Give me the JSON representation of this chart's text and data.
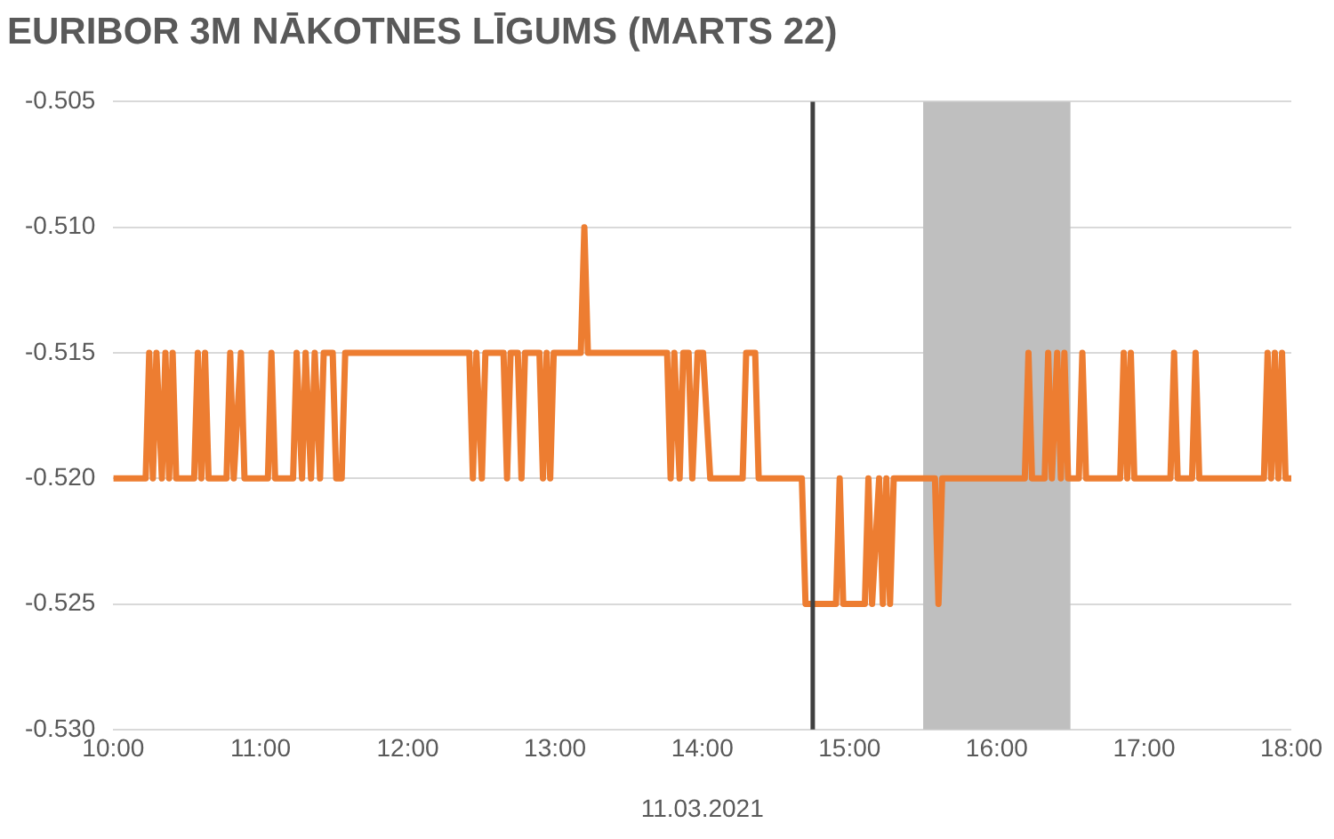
{
  "chart_data": {
    "type": "line",
    "title": "EURIBOR 3M NĀKOTNES LĪGUMS (MARTS 22)",
    "xlabel": "11.03.2021",
    "x": [
      10.0,
      10.22,
      10.244,
      10.269,
      10.293,
      10.33,
      10.354,
      10.379,
      10.403,
      10.427,
      10.549,
      10.574,
      10.598,
      10.623,
      10.647,
      10.769,
      10.794,
      10.818,
      10.867,
      10.891,
      11.05,
      11.074,
      11.099,
      11.221,
      11.245,
      11.282,
      11.306,
      11.343,
      11.368,
      11.404,
      11.429,
      11.49,
      11.514,
      11.551,
      11.575,
      12.418,
      12.442,
      12.466,
      12.503,
      12.527,
      12.65,
      12.674,
      12.698,
      12.747,
      12.772,
      12.796,
      12.894,
      12.918,
      12.943,
      12.967,
      12.991,
      13.175,
      13.199,
      13.223,
      13.761,
      13.785,
      13.81,
      13.846,
      13.871,
      13.907,
      13.932,
      13.968,
      14.005,
      14.054,
      14.274,
      14.298,
      14.359,
      14.383,
      14.676,
      14.701,
      14.908,
      14.933,
      14.957,
      15.104,
      15.128,
      15.153,
      15.201,
      15.226,
      15.25,
      15.275,
      15.3,
      15.58,
      15.604,
      15.629,
      16.19,
      16.215,
      16.239,
      16.325,
      16.349,
      16.374,
      16.41,
      16.435,
      16.459,
      16.484,
      16.557,
      16.581,
      16.606,
      16.838,
      16.862,
      16.886,
      16.91,
      16.934,
      17.179,
      17.204,
      17.228,
      17.326,
      17.35,
      17.375,
      17.814,
      17.839,
      17.863,
      17.888,
      17.912,
      17.937,
      17.961,
      18.0
    ],
    "series": [
      {
        "color": "#ed7d31",
        "values": [
          -0.52,
          -0.52,
          -0.515,
          -0.52,
          -0.515,
          -0.52,
          -0.515,
          -0.52,
          -0.515,
          -0.52,
          -0.52,
          -0.515,
          -0.52,
          -0.515,
          -0.52,
          -0.52,
          -0.515,
          -0.52,
          -0.515,
          -0.52,
          -0.52,
          -0.515,
          -0.52,
          -0.52,
          -0.515,
          -0.52,
          -0.515,
          -0.52,
          -0.515,
          -0.52,
          -0.515,
          -0.515,
          -0.52,
          -0.52,
          -0.515,
          -0.515,
          -0.52,
          -0.515,
          -0.52,
          -0.515,
          -0.515,
          -0.52,
          -0.515,
          -0.515,
          -0.52,
          -0.515,
          -0.515,
          -0.52,
          -0.515,
          -0.52,
          -0.515,
          -0.515,
          -0.51,
          -0.515,
          -0.515,
          -0.52,
          -0.515,
          -0.52,
          -0.515,
          -0.515,
          -0.52,
          -0.515,
          -0.515,
          -0.52,
          -0.52,
          -0.515,
          -0.515,
          -0.52,
          -0.52,
          -0.525,
          -0.525,
          -0.52,
          -0.525,
          -0.525,
          -0.52,
          -0.525,
          -0.52,
          -0.525,
          -0.52,
          -0.525,
          -0.52,
          -0.52,
          -0.525,
          -0.52,
          -0.52,
          -0.515,
          -0.52,
          -0.52,
          -0.515,
          -0.52,
          -0.515,
          -0.52,
          -0.515,
          -0.52,
          -0.52,
          -0.515,
          -0.52,
          -0.52,
          -0.515,
          -0.52,
          -0.515,
          -0.52,
          -0.52,
          -0.515,
          -0.52,
          -0.52,
          -0.515,
          -0.52,
          -0.52,
          -0.515,
          -0.52,
          -0.515,
          -0.52,
          -0.515,
          -0.52,
          -0.52
        ]
      }
    ],
    "xlim": [
      10,
      18
    ],
    "xticks": [
      {
        "value": 10,
        "label": "10:00"
      },
      {
        "value": 11,
        "label": "11:00"
      },
      {
        "value": 12,
        "label": "12:00"
      },
      {
        "value": 13,
        "label": "13:00"
      },
      {
        "value": 14,
        "label": "14:00"
      },
      {
        "value": 15,
        "label": "15:00"
      },
      {
        "value": 16,
        "label": "16:00"
      },
      {
        "value": 17,
        "label": "17:00"
      },
      {
        "value": 18,
        "label": "18:00"
      }
    ],
    "ylim": [
      -0.53,
      -0.505
    ],
    "yticks": [
      {
        "value": -0.53,
        "label": "-0.530"
      },
      {
        "value": -0.525,
        "label": "-0.525"
      },
      {
        "value": -0.52,
        "label": "-0.520"
      },
      {
        "value": -0.515,
        "label": "-0.515"
      },
      {
        "value": -0.51,
        "label": "-0.510"
      },
      {
        "value": -0.505,
        "label": "-0.505"
      }
    ],
    "ref_lines": [
      {
        "axis": "x",
        "value": 14.75,
        "color": "#404040"
      }
    ],
    "bands": [
      {
        "axis": "x",
        "from": 15.5,
        "to": 16.5,
        "color": "#bfbfbf"
      }
    ],
    "grid": "y",
    "marker": "none",
    "line_style": "solid",
    "legend": false
  }
}
